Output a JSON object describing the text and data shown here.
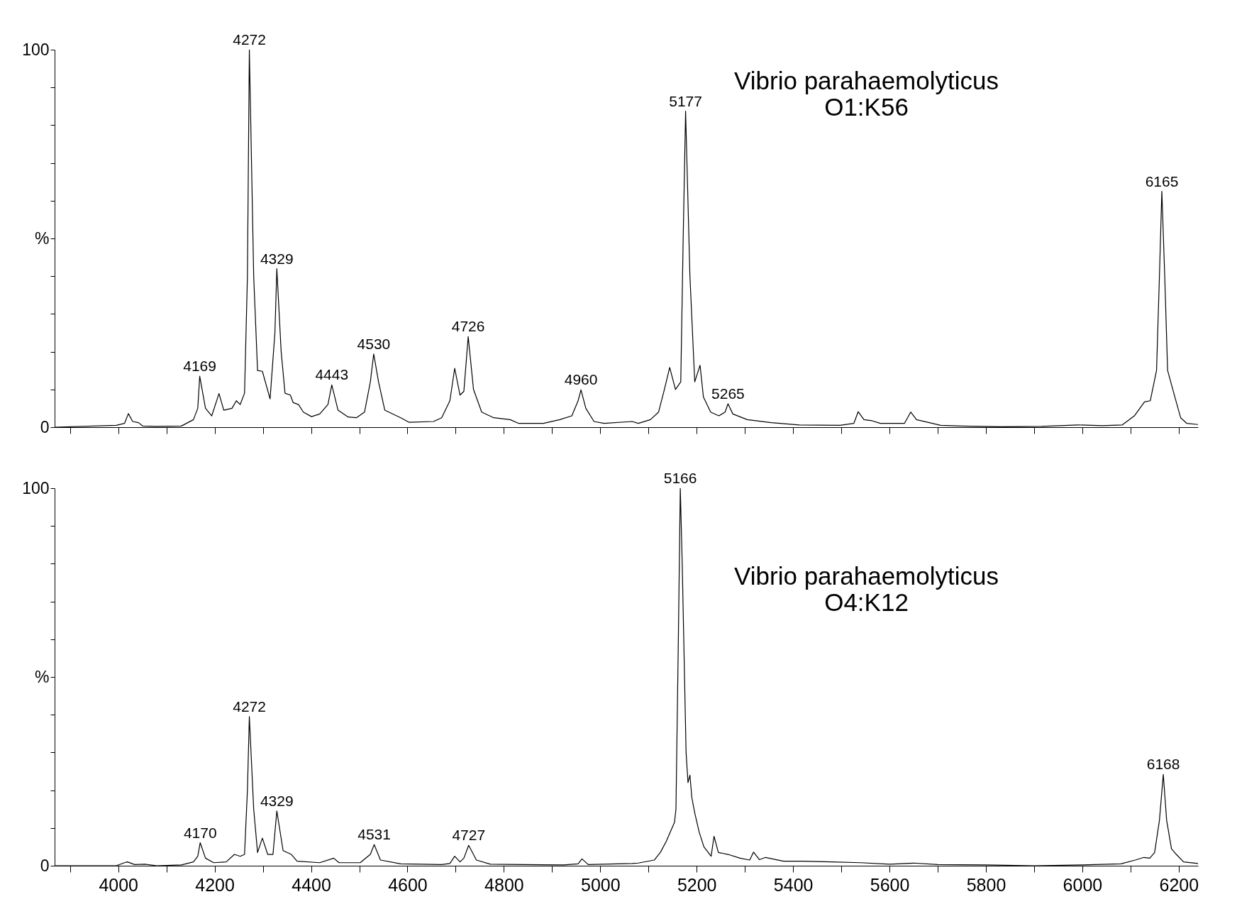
{
  "chart_data": [
    {
      "type": "line",
      "tick_labels": "y",
      "grid": false,
      "xlim": [
        3868,
        6240
      ],
      "ylim": [
        0,
        100
      ],
      "xticks": [
        {
          "value": 3900,
          "label": null
        },
        4000,
        {
          "value": 4100,
          "label": null
        },
        4200,
        {
          "value": 4300,
          "label": null
        },
        4400,
        {
          "value": 4500,
          "label": null
        },
        4600,
        {
          "value": 4700,
          "label": null
        },
        4800,
        {
          "value": 4900,
          "label": null
        },
        5000,
        {
          "value": 5100,
          "label": null
        },
        5200,
        {
          "value": 5300,
          "label": null
        },
        5400,
        {
          "value": 5500,
          "label": null
        },
        5600,
        {
          "value": 5700,
          "label": null
        },
        5800,
        {
          "value": 5900,
          "label": null
        },
        6000,
        {
          "value": 6100,
          "label": null
        },
        6200
      ],
      "yticks": [
        0,
        {
          "value": 10,
          "label": null
        },
        {
          "value": 20,
          "label": null
        },
        {
          "value": 30,
          "label": null
        },
        {
          "value": 40,
          "label": null
        },
        {
          "value": 50,
          "label": "%"
        },
        {
          "value": 60,
          "label": null
        },
        {
          "value": 70,
          "label": null
        },
        {
          "value": 80,
          "label": null
        },
        {
          "value": 90,
          "label": null
        },
        100
      ],
      "series": [
        {
          "color": "#000000",
          "x": [
            3868,
            3996,
            4013,
            4021,
            4030,
            4042,
            4051,
            4080,
            4131,
            4156,
            4165,
            4169,
            4181,
            4194,
            4209,
            4219,
            4236,
            4245,
            4253,
            4262,
            4268,
            4272,
            4281,
            4289,
            4299,
            4315,
            4325,
            4329,
            4338,
            4346,
            4357,
            4363,
            4374,
            4384,
            4401,
            4418,
            4435,
            4443,
            4456,
            4477,
            4494,
            4511,
            4523,
            4530,
            4540,
            4553,
            4586,
            4603,
            4654,
            4671,
            4688,
            4698,
            4709,
            4717,
            4726,
            4737,
            4754,
            4779,
            4813,
            4831,
            4882,
            4916,
            4941,
            4954,
            4960,
            4970,
            4987,
            5008,
            5066,
            5079,
            5104,
            5121,
            5133,
            5144,
            5156,
            5167,
            5172,
            5177,
            5186,
            5196,
            5207,
            5214,
            5229,
            5246,
            5259,
            5265,
            5275,
            5305,
            5355,
            5413,
            5497,
            5526,
            5535,
            5547,
            5564,
            5581,
            5631,
            5644,
            5656,
            5706,
            5748,
            5832,
            5915,
            5991,
            6041,
            6083,
            6108,
            6129,
            6141,
            6154,
            6160,
            6165,
            6171,
            6177,
            6192,
            6204,
            6217,
            6240
          ],
          "values": [
            0,
            0.5,
            1,
            3.6,
            1.5,
            1.2,
            0.3,
            0.2,
            0.3,
            2,
            5,
            13.5,
            5,
            3,
            8.9,
            4.5,
            5,
            7,
            6,
            9,
            40,
            100,
            40,
            15,
            14.8,
            7.5,
            25,
            42,
            20,
            9,
            8.5,
            6.5,
            6,
            4,
            2.8,
            3.5,
            6,
            11.2,
            4.5,
            2.7,
            2.5,
            4,
            12,
            19.4,
            12,
            4.5,
            2.5,
            1.3,
            1.5,
            2.5,
            7,
            15.6,
            8.5,
            9.5,
            24,
            10,
            4,
            2.5,
            2,
            1,
            1,
            2,
            3,
            7,
            9.9,
            5,
            1.5,
            1,
            1.5,
            1,
            2,
            4,
            10,
            15.8,
            10,
            12,
            50,
            83.7,
            40,
            12,
            16.4,
            8,
            4,
            3,
            4,
            6.2,
            3.5,
            2,
            1.2,
            0.6,
            0.5,
            1,
            4.1,
            2,
            1.7,
            1,
            1,
            4,
            2,
            0.5,
            0.3,
            0.1,
            0.2,
            0.6,
            0.4,
            0.6,
            3,
            6.7,
            7,
            15,
            40,
            62.5,
            40,
            15,
            8,
            2.5,
            1,
            0.7
          ]
        }
      ],
      "annotations": [
        {
          "text": "4169",
          "x": 4169,
          "y": 13.5
        },
        {
          "text": "4272",
          "x": 4272,
          "y": 100
        },
        {
          "text": "4329",
          "x": 4329,
          "y": 42
        },
        {
          "text": "4443",
          "x": 4443,
          "y": 11.2
        },
        {
          "text": "4530",
          "x": 4530,
          "y": 19.4
        },
        {
          "text": "4726",
          "x": 4726,
          "y": 24
        },
        {
          "text": "4960",
          "x": 4960,
          "y": 9.9
        },
        {
          "text": "5177",
          "x": 5177,
          "y": 83.7
        },
        {
          "text": "5265",
          "x": 5265,
          "y": 6.2
        },
        {
          "text": "6165",
          "x": 6165,
          "y": 62.5
        },
        "Vibrio parahaemolyticus\nO1:K56"
      ]
    },
    {
      "type": "line",
      "grid": false,
      "xlim": [
        3868,
        6240
      ],
      "ylim": [
        0,
        100
      ],
      "xticks": [
        {
          "value": 3900,
          "label": null
        },
        4000,
        {
          "value": 4100,
          "label": null
        },
        4200,
        {
          "value": 4300,
          "label": null
        },
        4400,
        {
          "value": 4500,
          "label": null
        },
        4600,
        {
          "value": 4700,
          "label": null
        },
        4800,
        {
          "value": 4900,
          "label": null
        },
        5000,
        {
          "value": 5100,
          "label": null
        },
        5200,
        {
          "value": 5300,
          "label": null
        },
        5400,
        {
          "value": 5500,
          "label": null
        },
        5600,
        {
          "value": 5700,
          "label": null
        },
        5800,
        {
          "value": 5900,
          "label": null
        },
        6000,
        {
          "value": 6100,
          "label": null
        },
        6200
      ],
      "yticks": [
        0,
        {
          "value": 10,
          "label": null
        },
        {
          "value": 20,
          "label": null
        },
        {
          "value": 30,
          "label": null
        },
        {
          "value": 40,
          "label": null
        },
        {
          "value": 50,
          "label": "%"
        },
        {
          "value": 60,
          "label": null
        },
        {
          "value": 70,
          "label": null
        },
        {
          "value": 80,
          "label": null
        },
        {
          "value": 90,
          "label": null
        },
        100
      ],
      "series": [
        {
          "color": "#000000",
          "x": [
            3868,
            3996,
            4013,
            4019,
            4034,
            4055,
            4080,
            4131,
            4156,
            4165,
            4170,
            4181,
            4198,
            4224,
            4241,
            4253,
            4262,
            4268,
            4272,
            4281,
            4289,
            4299,
            4310,
            4321,
            4329,
            4342,
            4359,
            4371,
            4418,
            4447,
            4458,
            4502,
            4523,
            4531,
            4544,
            4586,
            4671,
            4688,
            4698,
            4709,
            4717,
            4727,
            4743,
            4772,
            4840,
            4924,
            4954,
            4962,
            4975,
            5066,
            5079,
            5112,
            5125,
            5137,
            5154,
            5157,
            5162,
            5166,
            5170,
            5174,
            5178,
            5182,
            5186,
            5190,
            5196,
            5205,
            5215,
            5230,
            5236,
            5245,
            5265,
            5290,
            5310,
            5318,
            5330,
            5343,
            5380,
            5420,
            5480,
            5540,
            5600,
            5650,
            5700,
            5800,
            5900,
            6000,
            6080,
            6110,
            6128,
            6140,
            6150,
            6160,
            6168,
            6175,
            6185,
            6195,
            6210,
            6240
          ],
          "values": [
            0,
            0,
            0.8,
            1,
            0.3,
            0.4,
            0,
            0.2,
            1,
            2.5,
            6.1,
            2,
            0.8,
            1,
            3,
            2.5,
            3,
            20,
            39.5,
            15,
            3.5,
            7.3,
            3,
            3,
            14.5,
            4,
            3,
            1.2,
            0.8,
            2,
            0.8,
            0.8,
            3,
            5.6,
            1.5,
            0.5,
            0.3,
            0.6,
            2.5,
            1,
            2,
            5.4,
            1.5,
            0.4,
            0.3,
            0.2,
            0.5,
            1.8,
            0.3,
            0.6,
            0.7,
            1.5,
            3.6,
            6.5,
            11.5,
            15,
            60,
            100,
            80,
            55,
            30,
            22,
            24,
            18,
            14,
            9,
            5,
            2.5,
            7.8,
            3.5,
            3,
            2,
            1.5,
            3.6,
            1.6,
            2.2,
            1.2,
            1.2,
            1,
            0.8,
            0.4,
            0.7,
            0.3,
            0.2,
            0,
            0.2,
            0.5,
            1.5,
            2.2,
            2,
            3.5,
            12,
            24.2,
            12,
            4.5,
            3,
            1,
            0.6
          ]
        }
      ],
      "annotations": [
        {
          "text": "4170",
          "x": 4170,
          "y": 6.1
        },
        {
          "text": "4272",
          "x": 4272,
          "y": 39.5
        },
        {
          "text": "4329",
          "x": 4329,
          "y": 14.5
        },
        {
          "text": "4531",
          "x": 4531,
          "y": 5.6
        },
        {
          "text": "4727",
          "x": 4727,
          "y": 5.4
        },
        {
          "text": "5166",
          "x": 5166,
          "y": 100
        },
        {
          "text": "6168",
          "x": 6168,
          "y": 24.2
        },
        "Vibrio parahaemolyticus\nO4:K12"
      ]
    }
  ]
}
